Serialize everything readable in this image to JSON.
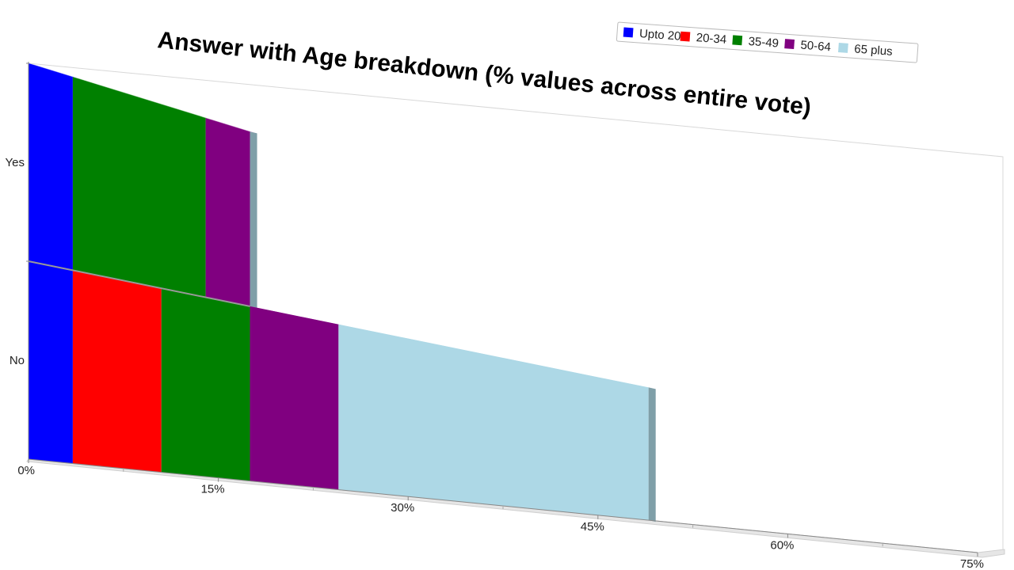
{
  "chart_data": {
    "type": "bar",
    "orientation": "horizontal",
    "stacked": true,
    "title": "Answer with Age breakdown (% values across entire vote)",
    "categories": [
      "Yes",
      "No"
    ],
    "series": [
      {
        "name": "Upto 20",
        "color": "#0000ff",
        "values": [
          3.5,
          3.5
        ]
      },
      {
        "name": "20-34",
        "color": "#ff0000",
        "values": [
          0,
          7
        ]
      },
      {
        "name": "35-49",
        "color": "#008000",
        "values": [
          10.5,
          7
        ]
      },
      {
        "name": "50-64",
        "color": "#800080",
        "values": [
          3.5,
          7
        ]
      },
      {
        "name": "65 plus",
        "color": "#add8e6",
        "values": [
          0,
          24.5
        ]
      }
    ],
    "xlim": [
      0,
      75
    ],
    "x_ticks": [
      "0%",
      "15%",
      "30%",
      "45%",
      "60%",
      "75%"
    ],
    "legend_position": "top-right",
    "grid": false
  }
}
